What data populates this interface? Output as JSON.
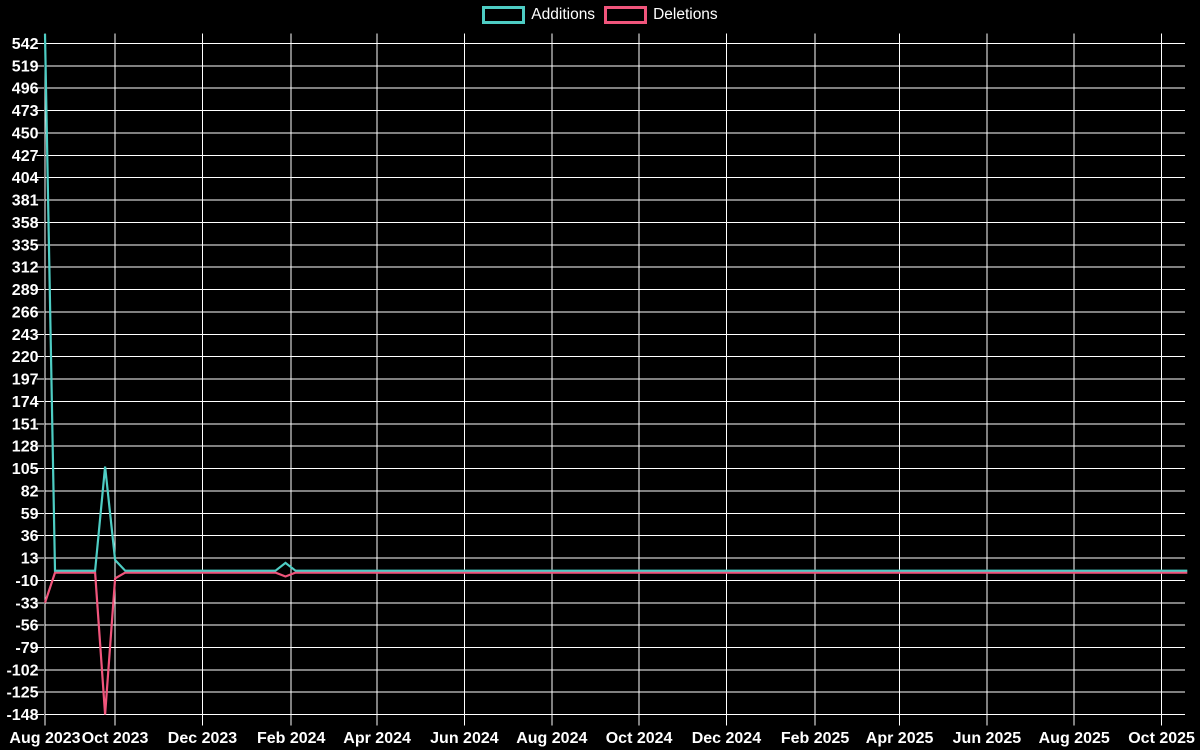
{
  "page": {
    "background": "#000000",
    "text_color": "#ffffff",
    "grid_color": "#ffffff"
  },
  "legend": {
    "position": "top",
    "items": [
      {
        "label": "Additions",
        "color": "#4ecdc4"
      },
      {
        "label": "Deletions",
        "color": "#f1557c"
      }
    ]
  },
  "chart_data": {
    "type": "line",
    "title": "",
    "xlabel": "",
    "ylabel": "",
    "grid": true,
    "legend_position": "top",
    "x_axis": {
      "tick_labels": [
        "Aug 2023",
        "Oct 2023",
        "Dec 2023",
        "Feb 2024",
        "Apr 2024",
        "Jun 2024",
        "Aug 2024",
        "Oct 2024",
        "Dec 2024",
        "Feb 2025",
        "Apr 2025",
        "Jun 2025",
        "Aug 2025",
        "Oct 2025"
      ],
      "tick_dates": [
        "2023-08-13",
        "2023-10-01",
        "2023-12-01",
        "2024-02-01",
        "2024-04-01",
        "2024-06-01",
        "2024-08-01",
        "2024-10-01",
        "2024-12-01",
        "2025-02-01",
        "2025-04-01",
        "2025-06-01",
        "2025-08-01",
        "2025-10-01"
      ],
      "range_dates": [
        "2023-08-13",
        "2025-10-19"
      ]
    },
    "y_axis": {
      "tick_values": [
        542,
        519,
        496,
        473,
        450,
        427,
        404,
        381,
        358,
        335,
        312,
        289,
        266,
        243,
        220,
        197,
        174,
        151,
        128,
        105,
        82,
        59,
        36,
        13,
        -10,
        -33,
        -56,
        -79,
        -102,
        -125,
        -148
      ],
      "tick_step": 23,
      "ylim": [
        -148,
        552
      ]
    },
    "series": [
      {
        "name": "Additions",
        "color": "#4ecdc4",
        "points": [
          [
            "2023-08-13",
            552
          ],
          [
            "2023-08-20",
            0
          ],
          [
            "2023-09-17",
            0
          ],
          [
            "2023-09-24",
            107
          ],
          [
            "2023-10-01",
            11
          ],
          [
            "2023-10-08",
            0
          ],
          [
            "2024-01-21",
            0
          ],
          [
            "2024-01-28",
            8
          ],
          [
            "2024-02-04",
            0
          ],
          [
            "2025-10-19",
            0
          ]
        ]
      },
      {
        "name": "Deletions",
        "color": "#f1557c",
        "points": [
          [
            "2023-08-13",
            -33
          ],
          [
            "2023-08-20",
            -2
          ],
          [
            "2023-09-17",
            -2
          ],
          [
            "2023-09-24",
            -148
          ],
          [
            "2023-10-01",
            -8
          ],
          [
            "2023-10-08",
            -2
          ],
          [
            "2024-01-21",
            -2
          ],
          [
            "2024-01-28",
            -6
          ],
          [
            "2024-02-04",
            -2
          ],
          [
            "2025-10-19",
            -2
          ]
        ]
      }
    ]
  }
}
